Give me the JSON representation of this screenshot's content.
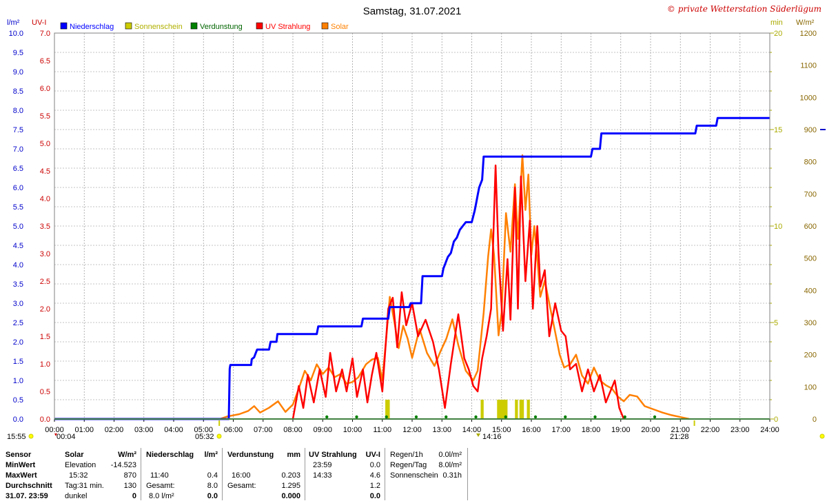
{
  "chart_data": {
    "type": "line",
    "title": "Samstag, 31.07.2021",
    "copyright": "© private Wetterstation Süderlügum",
    "x_ticks": [
      "00:00",
      "01:00",
      "02:00",
      "03:00",
      "04:00",
      "05:00",
      "06:00",
      "07:00",
      "08:00",
      "09:00",
      "10:00",
      "11:00",
      "12:00",
      "13:00",
      "14:00",
      "15:00",
      "16:00",
      "17:00",
      "18:00",
      "19:00",
      "20:00",
      "21:00",
      "22:00",
      "23:00",
      "24:00"
    ],
    "xlim": [
      0,
      24
    ],
    "axes": {
      "rain": {
        "unit": "l/m²",
        "ylim": [
          0,
          10
        ],
        "ticks": [
          "0.0",
          "0.5",
          "1.0",
          "1.5",
          "2.0",
          "2.5",
          "3.0",
          "3.5",
          "4.0",
          "4.5",
          "5.0",
          "5.5",
          "6.0",
          "6.5",
          "7.0",
          "7.5",
          "8.0",
          "8.5",
          "9.0",
          "9.5",
          "10.0"
        ],
        "color": "#0000cc"
      },
      "uv": {
        "unit": "UV-I",
        "ylim": [
          0,
          7
        ],
        "ticks": [
          "0.0",
          "0.5",
          "1.0",
          "1.5",
          "2.0",
          "2.5",
          "3.0",
          "3.5",
          "4.0",
          "4.5",
          "5.0",
          "5.5",
          "6.0",
          "6.5",
          "7.0"
        ],
        "color": "#cc0000"
      },
      "sun": {
        "unit": "min",
        "ylim": [
          0,
          20
        ],
        "ticks": [
          "0",
          "5",
          "10",
          "15",
          "20"
        ],
        "color": "#aaaa00"
      },
      "solar": {
        "unit": "W/m²",
        "ylim": [
          0,
          1200
        ],
        "ticks": [
          "0",
          "100",
          "200",
          "300",
          "400",
          "500",
          "600",
          "700",
          "800",
          "900",
          "1000",
          "1100",
          "1200"
        ],
        "color": "#886600"
      }
    },
    "legend": [
      {
        "label": "Niederschlag",
        "color": "#0000ff"
      },
      {
        "label": "Sonnenschein",
        "color": "#cccc00"
      },
      {
        "label": "Verdunstung",
        "color": "#008000"
      },
      {
        "label": "UV Strahlung",
        "color": "#ff0000"
      },
      {
        "label": "Solar",
        "color": "#ff8000"
      }
    ],
    "series": [
      {
        "name": "Niederschlag",
        "axis": "rain",
        "color": "#0000ff",
        "step": true,
        "points": [
          [
            0,
            0
          ],
          [
            5.85,
            0
          ],
          [
            5.88,
            1.3
          ],
          [
            5.9,
            1.4
          ],
          [
            6.6,
            1.4
          ],
          [
            6.62,
            1.55
          ],
          [
            6.7,
            1.6
          ],
          [
            6.75,
            1.7
          ],
          [
            6.8,
            1.8
          ],
          [
            7.2,
            1.8
          ],
          [
            7.25,
            2.0
          ],
          [
            7.45,
            2.0
          ],
          [
            7.48,
            2.2
          ],
          [
            8.8,
            2.2
          ],
          [
            8.85,
            2.4
          ],
          [
            10.3,
            2.4
          ],
          [
            10.35,
            2.6
          ],
          [
            11.2,
            2.6
          ],
          [
            11.25,
            2.9
          ],
          [
            11.9,
            2.9
          ],
          [
            11.95,
            3.0
          ],
          [
            12.3,
            3.0
          ],
          [
            12.35,
            3.7
          ],
          [
            13.0,
            3.7
          ],
          [
            13.05,
            3.9
          ],
          [
            13.1,
            4.0
          ],
          [
            13.15,
            4.1
          ],
          [
            13.2,
            4.2
          ],
          [
            13.3,
            4.3
          ],
          [
            13.4,
            4.6
          ],
          [
            13.5,
            4.7
          ],
          [
            13.6,
            4.9
          ],
          [
            13.7,
            5.0
          ],
          [
            13.8,
            5.1
          ],
          [
            14.0,
            5.1
          ],
          [
            14.1,
            5.4
          ],
          [
            14.15,
            5.6
          ],
          [
            14.2,
            5.8
          ],
          [
            14.25,
            6.0
          ],
          [
            14.35,
            6.2
          ],
          [
            14.4,
            6.8
          ],
          [
            14.45,
            6.8
          ],
          [
            18.0,
            6.8
          ],
          [
            18.05,
            7.0
          ],
          [
            18.3,
            7.0
          ],
          [
            18.35,
            7.4
          ],
          [
            21.5,
            7.4
          ],
          [
            21.55,
            7.6
          ],
          [
            22.2,
            7.6
          ],
          [
            22.25,
            7.8
          ],
          [
            23.9,
            7.8
          ],
          [
            24,
            7.8
          ]
        ]
      },
      {
        "name": "UV Strahlung",
        "axis": "uv",
        "color": "#ff0000",
        "points": [
          [
            8.0,
            0
          ],
          [
            8.2,
            0.6
          ],
          [
            8.35,
            0.2
          ],
          [
            8.5,
            0.8
          ],
          [
            8.7,
            0.3
          ],
          [
            8.9,
            0.9
          ],
          [
            9.1,
            0.4
          ],
          [
            9.25,
            1.2
          ],
          [
            9.45,
            0.5
          ],
          [
            9.65,
            0.9
          ],
          [
            9.8,
            0.5
          ],
          [
            10.0,
            1.1
          ],
          [
            10.15,
            0.4
          ],
          [
            10.35,
            0.9
          ],
          [
            10.5,
            0.3
          ],
          [
            10.65,
            0.8
          ],
          [
            10.8,
            1.2
          ],
          [
            11.0,
            0.5
          ],
          [
            11.2,
            2.0
          ],
          [
            11.35,
            2.2
          ],
          [
            11.5,
            1.3
          ],
          [
            11.65,
            2.3
          ],
          [
            11.8,
            1.7
          ],
          [
            12.0,
            2.1
          ],
          [
            12.2,
            1.5
          ],
          [
            12.45,
            1.8
          ],
          [
            12.7,
            1.4
          ],
          [
            12.9,
            0.9
          ],
          [
            13.1,
            0.2
          ],
          [
            13.3,
            1.0
          ],
          [
            13.55,
            1.9
          ],
          [
            13.75,
            1.1
          ],
          [
            13.9,
            0.9
          ],
          [
            14.05,
            0.6
          ],
          [
            14.2,
            0.5
          ],
          [
            14.35,
            1.1
          ],
          [
            14.5,
            1.5
          ],
          [
            14.65,
            2.0
          ],
          [
            14.8,
            4.6
          ],
          [
            14.9,
            3.0
          ],
          [
            15.05,
            1.6
          ],
          [
            15.2,
            2.9
          ],
          [
            15.3,
            1.8
          ],
          [
            15.45,
            4.2
          ],
          [
            15.55,
            2.0
          ],
          [
            15.65,
            4.4
          ],
          [
            15.8,
            2.5
          ],
          [
            15.95,
            3.6
          ],
          [
            16.05,
            2.0
          ],
          [
            16.2,
            3.5
          ],
          [
            16.3,
            2.4
          ],
          [
            16.45,
            2.7
          ],
          [
            16.6,
            1.5
          ],
          [
            16.8,
            2.1
          ],
          [
            17.0,
            1.6
          ],
          [
            17.15,
            1.5
          ],
          [
            17.3,
            0.9
          ],
          [
            17.5,
            1.0
          ],
          [
            17.7,
            0.5
          ],
          [
            17.9,
            0.9
          ],
          [
            18.1,
            0.5
          ],
          [
            18.3,
            0.8
          ],
          [
            18.5,
            0.3
          ],
          [
            18.8,
            0.7
          ],
          [
            18.95,
            0.2
          ],
          [
            19.1,
            0
          ]
        ]
      },
      {
        "name": "Solar",
        "axis": "solar",
        "color": "#ff8000",
        "points": [
          [
            5.55,
            0
          ],
          [
            5.8,
            8
          ],
          [
            6.2,
            15
          ],
          [
            6.5,
            25
          ],
          [
            6.7,
            40
          ],
          [
            6.9,
            20
          ],
          [
            7.2,
            35
          ],
          [
            7.5,
            55
          ],
          [
            7.75,
            22
          ],
          [
            8.0,
            45
          ],
          [
            8.2,
            95
          ],
          [
            8.4,
            150
          ],
          [
            8.6,
            120
          ],
          [
            8.8,
            170
          ],
          [
            9.0,
            140
          ],
          [
            9.2,
            160
          ],
          [
            9.4,
            130
          ],
          [
            9.6,
            140
          ],
          [
            9.8,
            110
          ],
          [
            10.0,
            115
          ],
          [
            10.2,
            130
          ],
          [
            10.45,
            170
          ],
          [
            10.65,
            185
          ],
          [
            10.85,
            190
          ],
          [
            11.0,
            120
          ],
          [
            11.15,
            270
          ],
          [
            11.25,
            380
          ],
          [
            11.4,
            305
          ],
          [
            11.55,
            220
          ],
          [
            11.7,
            290
          ],
          [
            11.85,
            250
          ],
          [
            12.0,
            190
          ],
          [
            12.25,
            280
          ],
          [
            12.5,
            205
          ],
          [
            12.75,
            165
          ],
          [
            12.95,
            210
          ],
          [
            13.15,
            250
          ],
          [
            13.35,
            310
          ],
          [
            13.55,
            230
          ],
          [
            13.8,
            150
          ],
          [
            14.05,
            120
          ],
          [
            14.2,
            150
          ],
          [
            14.4,
            330
          ],
          [
            14.55,
            505
          ],
          [
            14.65,
            590
          ],
          [
            14.75,
            510
          ],
          [
            14.9,
            260
          ],
          [
            15.0,
            330
          ],
          [
            15.15,
            640
          ],
          [
            15.3,
            520
          ],
          [
            15.45,
            730
          ],
          [
            15.55,
            560
          ],
          [
            15.7,
            820
          ],
          [
            15.8,
            650
          ],
          [
            15.9,
            760
          ],
          [
            16.0,
            510
          ],
          [
            16.1,
            600
          ],
          [
            16.2,
            500
          ],
          [
            16.3,
            380
          ],
          [
            16.45,
            430
          ],
          [
            16.6,
            360
          ],
          [
            16.8,
            270
          ],
          [
            16.95,
            200
          ],
          [
            17.1,
            160
          ],
          [
            17.3,
            170
          ],
          [
            17.5,
            200
          ],
          [
            17.7,
            135
          ],
          [
            17.9,
            110
          ],
          [
            18.1,
            160
          ],
          [
            18.3,
            120
          ],
          [
            18.5,
            105
          ],
          [
            18.7,
            95
          ],
          [
            18.9,
            70
          ],
          [
            19.1,
            55
          ],
          [
            19.3,
            75
          ],
          [
            19.55,
            70
          ],
          [
            19.8,
            40
          ],
          [
            20.1,
            30
          ],
          [
            20.4,
            20
          ],
          [
            20.7,
            12
          ],
          [
            21.0,
            6
          ],
          [
            21.3,
            0
          ]
        ]
      }
    ],
    "sunshine_bars": [
      [
        11.1,
        11.25,
        1
      ],
      [
        14.3,
        14.4,
        1
      ],
      [
        14.85,
        15.2,
        1
      ],
      [
        15.45,
        15.55,
        1
      ],
      [
        15.6,
        15.75,
        1
      ],
      [
        15.85,
        15.95,
        1
      ]
    ],
    "sunshine_axis": "sun",
    "verdunstung_markers": [
      9,
      10,
      11,
      12,
      13,
      14,
      15,
      16,
      17,
      18,
      19,
      20
    ],
    "side_labels": {
      "left_time": "15:55",
      "sunrise": "05:32",
      "sunset": "21:28",
      "start_marker": "00:04",
      "noon_marker": "14:16"
    }
  },
  "stats": {
    "col_labels": {
      "title": "Sensor",
      "min": "MinWert",
      "max": "MaxWert",
      "avg": "Durchschnitt",
      "date": "31.07. 23:59"
    },
    "solar": {
      "head": "Solar",
      "unit": "W/m²",
      "r1a": "Elevation",
      "r1b": "-14.523",
      "r2a": "15:32",
      "r2b": "870",
      "r3a": "Tag:31 min.",
      "r3b": "130",
      "r4a": "dunkel",
      "r4b": "0"
    },
    "rain": {
      "head": "Niederschlag",
      "unit": "l/m²",
      "r1a": "",
      "r1b": "",
      "r2a": "11:40",
      "r2b": "0.4",
      "r3a": "Gesamt:",
      "r3b": "8.0",
      "r4a": "8.0 l/m²",
      "r4b": "0.0"
    },
    "evap": {
      "head": "Verdunstung",
      "unit": "mm",
      "r1a": "",
      "r1b": "",
      "r2a": "16:00",
      "r2b": "0.203",
      "r3a": "Gesamt:",
      "r3b": "1.295",
      "r4a": "",
      "r4b": "0.000"
    },
    "uv": {
      "head": "UV Strahlung",
      "unit": "UV-I",
      "r1a": "23:59",
      "r1b": "0.0",
      "r2a": "14:33",
      "r2b": "4.6",
      "r3a": "",
      "r3b": "1.2",
      "r4a": "",
      "r4b": "0.0"
    },
    "extra": {
      "l1": "Regen/1h",
      "v1": "0.0l/m²",
      "l2": "Regen/Tag",
      "v2": "8.0l/m²",
      "l3": "Sonnenschein",
      "v3": "0.31h"
    }
  }
}
